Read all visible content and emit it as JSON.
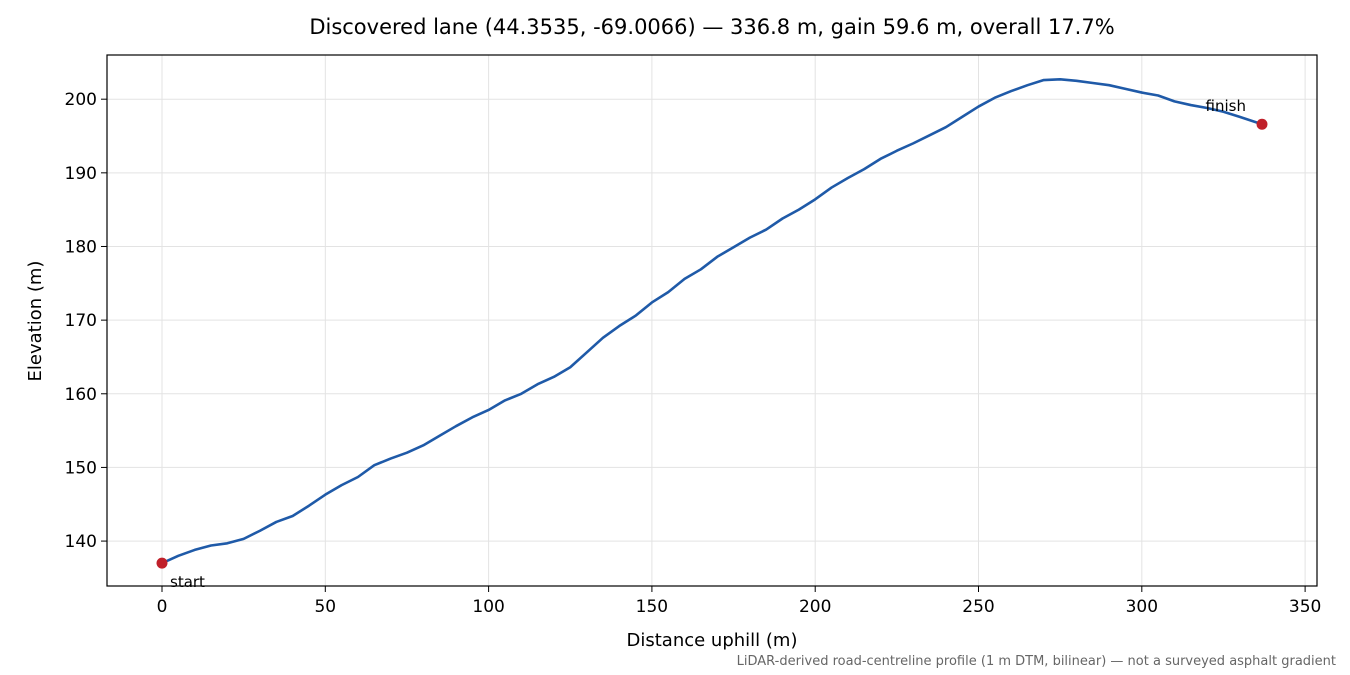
{
  "chart_data": {
    "type": "line",
    "title": "Discovered lane (44.3535, -69.0066) — 336.8 m, gain 59.6 m, overall 17.7%",
    "x_label": "Distance uphill (m)",
    "y_label": "Elevation (m)",
    "footnote": "LiDAR-derived road-centreline profile (1 m DTM, bilinear) — not a surveyed asphalt gradient",
    "x": [
      0,
      5,
      10,
      15,
      20,
      25,
      30,
      35,
      40,
      45,
      50,
      55,
      60,
      65,
      70,
      75,
      80,
      85,
      90,
      95,
      100,
      105,
      110,
      115,
      120,
      125,
      130,
      135,
      140,
      145,
      150,
      155,
      160,
      165,
      170,
      175,
      180,
      185,
      190,
      195,
      200,
      205,
      210,
      215,
      220,
      225,
      230,
      235,
      240,
      245,
      250,
      255,
      260,
      265,
      270,
      275,
      280,
      285,
      290,
      295,
      300,
      305,
      310,
      315,
      320,
      325,
      330,
      336.8
    ],
    "series": [
      {
        "color": "#1f5aa8",
        "values": [
          137.0,
          138.0,
          138.8,
          139.4,
          139.7,
          140.3,
          141.4,
          142.6,
          143.4,
          144.8,
          146.3,
          147.6,
          148.7,
          150.3,
          151.2,
          152.0,
          153.0,
          154.3,
          155.6,
          156.8,
          157.8,
          159.1,
          160.0,
          161.3,
          162.3,
          163.6,
          165.6,
          167.6,
          169.2,
          170.6,
          172.4,
          173.8,
          175.6,
          176.9,
          178.6,
          179.9,
          181.2,
          182.3,
          183.8,
          185.0,
          186.4,
          188.0,
          189.3,
          190.5,
          191.9,
          193.0,
          194.0,
          195.1,
          196.2,
          197.6,
          199.0,
          200.2,
          201.1,
          201.9,
          202.6,
          202.7,
          202.5,
          202.2,
          201.9,
          201.4,
          200.9,
          200.5,
          199.7,
          199.2,
          198.8,
          198.3,
          197.6,
          196.6
        ]
      }
    ],
    "points": [
      {
        "label": "start",
        "x": 0,
        "y": 137.0,
        "color": "#c0202a"
      },
      {
        "label": "finish",
        "x": 336.8,
        "y": 196.6,
        "color": "#c0202a"
      }
    ],
    "xlim": [
      -16.84,
      353.64
    ],
    "ylim": [
      133.9,
      206.0
    ],
    "xticks": [
      0,
      50,
      100,
      150,
      200,
      250,
      300,
      350
    ],
    "yticks": [
      140,
      150,
      160,
      170,
      180,
      190,
      200
    ],
    "grid": true
  }
}
